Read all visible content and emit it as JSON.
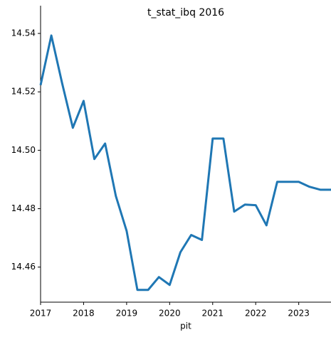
{
  "chart_data": {
    "type": "line",
    "title": "t_stat_ibq 2016",
    "x_label": "pit",
    "x": [
      2017,
      2017.25,
      2017.5,
      2017.75,
      2018,
      2018.25,
      2018.5,
      2018.75,
      2019,
      2019.25,
      2019.5,
      2019.75,
      2020,
      2020.25,
      2020.5,
      2020.75,
      2021,
      2021.25,
      2021.5,
      2021.75,
      2022,
      2022.25,
      2022.5,
      2022.75,
      2023,
      2023.25,
      2023.5,
      2023.75
    ],
    "series": [
      {
        "color": "#1f77b4",
        "values": [
          14.5223,
          14.5393,
          14.523,
          14.5077,
          14.5169,
          14.497,
          14.5023,
          14.4843,
          14.4724,
          14.4522,
          14.4522,
          14.4566,
          14.4539,
          14.4651,
          14.471,
          14.4693,
          14.504,
          14.504,
          14.479,
          14.4814,
          14.4812,
          14.4743,
          14.4892,
          14.4892,
          14.4892,
          14.4875,
          14.4865,
          14.4865
        ]
      }
    ],
    "xlim": [
      2017,
      2023.75
    ],
    "xticks": [
      2017,
      2018,
      2019,
      2020,
      2021,
      2022,
      2023
    ],
    "ylim": [
      14.448,
      14.5495
    ],
    "yticks": [
      14.46,
      14.48,
      {
        "value": 14.5,
        "label": "14.50"
      },
      14.52,
      14.54
    ]
  }
}
